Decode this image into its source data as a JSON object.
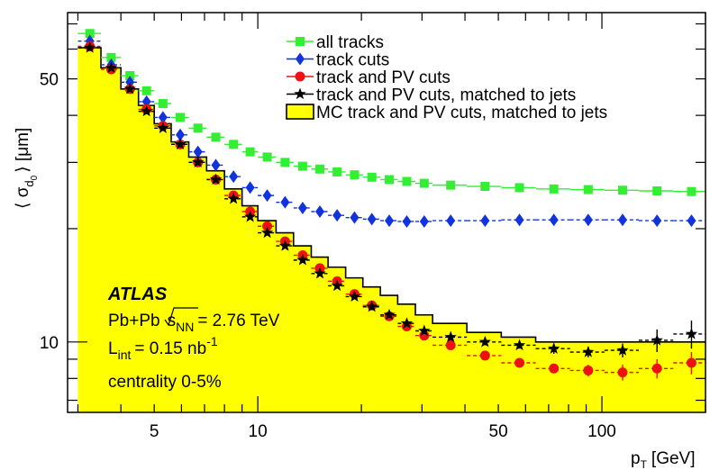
{
  "chart_data": {
    "type": "scatter",
    "x_scale": "log",
    "y_scale": "log",
    "xlim": [
      2.8,
      200
    ],
    "ylim": [
      6.5,
      75
    ],
    "xlabel": "p_T [GeV]",
    "ylabel": "⟨σ_d0⟩ [μm]",
    "x_ticks": [
      {
        "value": 5,
        "label": "5"
      },
      {
        "value": 10,
        "label": "10"
      },
      {
        "value": 50,
        "label": "50"
      },
      {
        "value": 100,
        "label": "100"
      }
    ],
    "y_ticks": [
      {
        "value": 10,
        "label": "10"
      },
      {
        "value": 50,
        "label": "50"
      }
    ],
    "grid": false,
    "legend_position": "top-right",
    "bin_edges": [
      3.0,
      3.5,
      4.0,
      4.5,
      5.0,
      5.6,
      6.3,
      7.1,
      8.0,
      9.0,
      10.0,
      11.3,
      12.7,
      14.3,
      16.0,
      18.0,
      20.2,
      22.7,
      25.5,
      28.7,
      32.2,
      40.5,
      51.0,
      64.2,
      80.8,
      101.7,
      128.0,
      161.2,
      203.0
    ],
    "mc_histogram": {
      "name": "MC track and PV cuts, matched to jets",
      "values": [
        60.5,
        53.5,
        47.0,
        42.5,
        38.0,
        34.0,
        31.0,
        28.5,
        25.5,
        23.0,
        21.0,
        19.5,
        18.0,
        16.8,
        15.8,
        14.8,
        14.0,
        13.3,
        12.6,
        11.8,
        11.2,
        10.6,
        10.3,
        10.0,
        10.0,
        10.0,
        10.0,
        10.0
      ]
    },
    "series": [
      {
        "name": "all tracks",
        "marker": "square",
        "color": "#33ee33",
        "x": [
          3.25,
          3.75,
          4.25,
          4.75,
          5.3,
          5.95,
          6.7,
          7.55,
          8.5,
          9.5,
          10.65,
          12.0,
          13.5,
          15.15,
          17.0,
          19.1,
          21.45,
          24.1,
          27.1,
          30.45,
          36.35,
          45.75,
          57.6,
          72.5,
          91.25,
          114.85,
          144.6,
          182.1
        ],
        "y": [
          66.0,
          57.0,
          51.0,
          46.5,
          43.0,
          39.5,
          37.0,
          35.0,
          33.5,
          32.0,
          31.0,
          30.0,
          29.3,
          28.8,
          28.3,
          27.8,
          27.4,
          27.0,
          26.7,
          26.4,
          26.1,
          25.9,
          25.7,
          25.5,
          25.4,
          25.3,
          25.2,
          25.1
        ],
        "yerr": [
          0.6,
          0.5,
          0.4,
          0.4,
          0.3,
          0.3,
          0.3,
          0.3,
          0.3,
          0.3,
          0.3,
          0.3,
          0.3,
          0.3,
          0.3,
          0.3,
          0.3,
          0.3,
          0.3,
          0.3,
          0.3,
          0.3,
          0.3,
          0.3,
          0.4,
          0.4,
          0.5,
          0.6
        ]
      },
      {
        "name": "track cuts",
        "marker": "diamond",
        "color": "#1133dd",
        "x": [
          3.25,
          3.75,
          4.25,
          4.75,
          5.3,
          5.95,
          6.7,
          7.55,
          8.5,
          9.5,
          10.65,
          12.0,
          13.5,
          15.15,
          17.0,
          19.1,
          21.45,
          24.1,
          27.1,
          30.45,
          36.35,
          45.75,
          57.6,
          72.5,
          91.25,
          114.85,
          144.6,
          182.1
        ],
        "y": [
          63.0,
          54.5,
          49.0,
          43.5,
          39.5,
          35.5,
          32.0,
          29.5,
          27.5,
          25.7,
          24.5,
          23.5,
          22.7,
          22.2,
          21.7,
          21.4,
          21.2,
          21.0,
          20.9,
          20.9,
          21.0,
          21.0,
          21.1,
          21.1,
          21.1,
          21.1,
          21.0,
          21.0
        ],
        "yerr": [
          0.6,
          0.5,
          0.4,
          0.4,
          0.3,
          0.3,
          0.3,
          0.3,
          0.3,
          0.3,
          0.3,
          0.3,
          0.3,
          0.3,
          0.3,
          0.3,
          0.3,
          0.3,
          0.3,
          0.3,
          0.3,
          0.3,
          0.3,
          0.3,
          0.4,
          0.4,
          0.5,
          0.6
        ]
      },
      {
        "name": "track and PV cuts",
        "marker": "circle",
        "color": "#ee1111",
        "x": [
          3.25,
          3.75,
          4.25,
          4.75,
          5.3,
          5.95,
          6.7,
          7.55,
          8.5,
          9.5,
          10.65,
          12.0,
          13.5,
          15.15,
          17.0,
          19.1,
          21.45,
          24.1,
          27.1,
          30.45,
          36.35,
          45.75,
          57.6,
          72.5,
          91.25,
          114.85,
          144.6,
          182.1
        ],
        "y": [
          61.0,
          53.0,
          47.0,
          41.5,
          37.5,
          33.5,
          30.0,
          27.0,
          24.5,
          22.2,
          20.3,
          18.5,
          17.0,
          15.7,
          14.5,
          13.4,
          12.5,
          11.7,
          11.0,
          10.4,
          9.8,
          9.2,
          8.8,
          8.5,
          8.4,
          8.3,
          8.5,
          8.8
        ],
        "yerr": [
          0.6,
          0.5,
          0.4,
          0.4,
          0.3,
          0.3,
          0.3,
          0.3,
          0.3,
          0.3,
          0.2,
          0.2,
          0.2,
          0.2,
          0.2,
          0.2,
          0.2,
          0.2,
          0.2,
          0.2,
          0.2,
          0.2,
          0.2,
          0.2,
          0.3,
          0.4,
          0.5,
          0.6
        ]
      },
      {
        "name": "track and PV cuts, matched to jets",
        "marker": "star",
        "color": "#000000",
        "x": [
          3.25,
          3.75,
          4.25,
          4.75,
          5.3,
          5.95,
          6.7,
          7.55,
          8.5,
          9.5,
          10.65,
          12.0,
          13.5,
          15.15,
          17.0,
          19.1,
          21.45,
          24.1,
          27.1,
          30.45,
          36.35,
          45.75,
          57.6,
          72.5,
          91.25,
          114.85,
          144.6,
          182.1
        ],
        "y": [
          60.5,
          53.5,
          47.0,
          41.0,
          37.0,
          33.5,
          30.0,
          27.0,
          24.0,
          21.5,
          19.5,
          18.0,
          16.5,
          15.2,
          14.1,
          13.2,
          12.4,
          11.8,
          11.2,
          10.7,
          10.3,
          10.0,
          9.8,
          9.6,
          9.4,
          9.5,
          10.1,
          10.5
        ],
        "yerr": [
          0.6,
          0.5,
          0.4,
          0.4,
          0.3,
          0.3,
          0.3,
          0.3,
          0.3,
          0.3,
          0.2,
          0.2,
          0.2,
          0.2,
          0.2,
          0.2,
          0.2,
          0.2,
          0.2,
          0.2,
          0.2,
          0.2,
          0.2,
          0.3,
          0.3,
          0.4,
          0.7,
          0.9
        ]
      }
    ],
    "legend": [
      {
        "label": "all tracks",
        "marker": "square",
        "color": "#33ee33"
      },
      {
        "label": "track cuts",
        "marker": "diamond",
        "color": "#1133dd"
      },
      {
        "label": "track and PV cuts",
        "marker": "circle",
        "color": "#ee1111"
      },
      {
        "label": "track and PV cuts, matched to jets",
        "marker": "star",
        "color": "#000000"
      },
      {
        "label": "MC track and PV cuts, matched to jets",
        "marker": "fill",
        "color": "#ffff00"
      }
    ],
    "annotations": {
      "experiment": "ATLAS",
      "system_prefix": "Pb+Pb",
      "sqrt": "s",
      "sqrt_sub": "NN",
      "energy": "= 2.76 TeV",
      "lumi_prefix": "L",
      "lumi_sub": "int",
      "lumi_value": "= 0.15 nb",
      "lumi_exp": "-1",
      "centrality": "centrality 0-5%"
    }
  }
}
